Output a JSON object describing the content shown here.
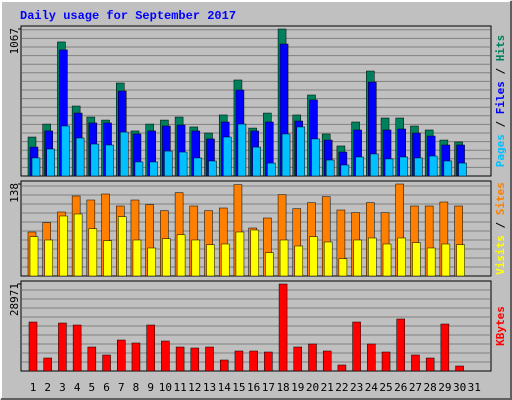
{
  "chart_data": [
    {
      "type": "bar",
      "title": "Daily usage for September 2017",
      "ylim": [
        0,
        1067
      ],
      "yticks": [
        1067
      ],
      "legend_separator": " / ",
      "series": [
        {
          "name": "Hits",
          "color": "#00805c",
          "values": [
            283,
            377,
            973,
            508,
            428,
            406,
            675,
            327,
            377,
            406,
            428,
            356,
            312,
            443,
            697,
            348,
            457,
            1067,
            443,
            588,
            305,
            218,
            392,
            762,
            421,
            421,
            363,
            334,
            261,
            247,
            null
          ]
        },
        {
          "name": "Files",
          "color": "#0000ff",
          "values": [
            210,
            327,
            915,
            457,
            385,
            385,
            617,
            305,
            327,
            363,
            370,
            327,
            269,
            392,
            624,
            327,
            392,
            958,
            399,
            552,
            261,
            174,
            334,
            682,
            334,
            341,
            312,
            290,
            225,
            225,
            null
          ]
        },
        {
          "name": "Pages",
          "color": "#00c0ff",
          "values": [
            131,
            196,
            363,
            276,
            232,
            225,
            319,
            102,
            102,
            181,
            174,
            131,
            109,
            283,
            377,
            210,
            94,
            305,
            356,
            269,
            116,
            80,
            138,
            160,
            124,
            138,
            131,
            145,
            109,
            94,
            null
          ]
        }
      ]
    },
    {
      "type": "bar",
      "ylim": [
        0,
        138
      ],
      "yticks": [
        138
      ],
      "legend_separator": " / ",
      "series": [
        {
          "name": "Sites",
          "color": "#ff8000",
          "values": [
            66,
            80,
            96,
            120,
            114,
            123,
            105,
            114,
            107,
            98,
            125,
            105,
            98,
            102,
            137,
            72,
            87,
            122,
            101,
            110,
            119,
            99,
            95,
            110,
            95,
            138,
            105,
            105,
            111,
            105,
            null
          ]
        },
        {
          "name": "Visits",
          "color": "#ffff00",
          "values": [
            59,
            54,
            90,
            93,
            71,
            53,
            89,
            54,
            42,
            56,
            62,
            54,
            47,
            48,
            66,
            69,
            35,
            54,
            45,
            59,
            51,
            26,
            54,
            57,
            48,
            57,
            50,
            42,
            48,
            47,
            null
          ]
        }
      ]
    },
    {
      "type": "bar",
      "ylim": [
        0,
        28971
      ],
      "yticks": [
        28971
      ],
      "categories": [
        "1",
        "2",
        "3",
        "4",
        "5",
        "6",
        "7",
        "8",
        "9",
        "10",
        "11",
        "12",
        "13",
        "14",
        "15",
        "16",
        "17",
        "18",
        "19",
        "20",
        "21",
        "22",
        "23",
        "24",
        "25",
        "26",
        "27",
        "28",
        "29",
        "30",
        "31"
      ],
      "category_colors": [
        "#000000",
        "#00805c",
        "#00805c",
        "#000000",
        "#000000",
        "#000000",
        "#000000",
        "#000000",
        "#00805c",
        "#00805c",
        "#000000",
        "#000000",
        "#000000",
        "#000000",
        "#000000",
        "#00805c",
        "#00805c",
        "#000000",
        "#000000",
        "#000000",
        "#000000",
        "#000000",
        "#00805c",
        "#00805c",
        "#000000",
        "#000000",
        "#000000",
        "#000000",
        "#000000",
        "#00805c",
        "#00805c"
      ],
      "series": [
        {
          "name": "KBytes",
          "color": "#ff0000",
          "values": [
            16317,
            4329,
            15984,
            15318,
            7992,
            5328,
            10323,
            9324,
            15318,
            9990,
            7992,
            7659,
            7992,
            3663,
            6660,
            6660,
            6327,
            28971,
            7992,
            8991,
            6660,
            1998,
            16317,
            8991,
            6327,
            17316,
            5328,
            4329,
            15651,
            1665,
            null
          ]
        }
      ]
    }
  ]
}
